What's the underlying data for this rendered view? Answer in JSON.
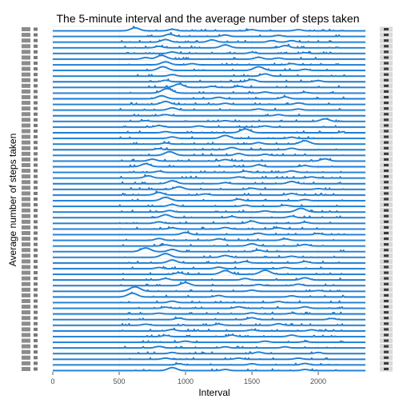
{
  "chart_data": {
    "type": "line",
    "title": "The 5-minute interval and the average number of steps taken",
    "xlabel": "Interval",
    "ylabel": "Average number of steps taken",
    "xlim": [
      0,
      2355
    ],
    "x_ticks": [
      0,
      500,
      1000,
      1500,
      2000
    ],
    "facet_count": 61,
    "facet_layout": "one panel per row, stacked vertically, with a strip label on the right of each panel",
    "strip_labels_legible": false,
    "y_tick_labels_legible": false,
    "grid": true,
    "legend": "none",
    "series_color": "#1f7fd4",
    "panels": [
      {
        "peaks": [
          [
            620,
            4
          ],
          [
            900,
            2
          ],
          [
            1500,
            1.5
          ],
          [
            1850,
            1.5
          ]
        ]
      },
      {
        "peaks": [
          [
            880,
            3
          ],
          [
            1300,
            2
          ],
          [
            1700,
            1.5
          ]
        ]
      },
      {
        "peaks": [
          [
            850,
            3.5
          ],
          [
            1200,
            3
          ],
          [
            1650,
            2
          ],
          [
            1800,
            2
          ]
        ]
      },
      {
        "peaks": [
          [
            800,
            2
          ],
          [
            1300,
            4
          ],
          [
            1750,
            3
          ]
        ]
      },
      {
        "peaks": [
          [
            900,
            2
          ],
          [
            1500,
            1.5
          ],
          [
            1900,
            1
          ]
        ]
      },
      {
        "peaks": [
          [
            700,
            2
          ],
          [
            820,
            5
          ],
          [
            1550,
            2.5
          ],
          [
            1700,
            1.5
          ]
        ]
      },
      {
        "peaks": [
          [
            850,
            4
          ],
          [
            1050,
            1.5
          ],
          [
            1800,
            1.5
          ]
        ]
      },
      {
        "peaks": [
          [
            830,
            5
          ],
          [
            1550,
            5
          ],
          [
            1900,
            1.5
          ]
        ]
      },
      {
        "peaks": [
          [
            900,
            2
          ],
          [
            1600,
            3
          ]
        ]
      },
      {
        "peaks": [
          [
            850,
            2
          ],
          [
            1500,
            3
          ],
          [
            2000,
            1.5
          ]
        ]
      },
      {
        "peaks": [
          [
            950,
            4.5
          ],
          [
            1200,
            1.5
          ],
          [
            1400,
            1.5
          ]
        ]
      },
      {
        "peaks": [
          [
            860,
            6
          ],
          [
            1600,
            1.5
          ],
          [
            1900,
            1
          ]
        ]
      },
      {
        "peaks": [
          [
            820,
            4
          ],
          [
            1250,
            2
          ],
          [
            1750,
            2.5
          ]
        ]
      },
      {
        "peaks": [
          [
            850,
            4
          ],
          [
            1300,
            1.5
          ],
          [
            1850,
            2
          ]
        ]
      },
      {
        "peaks": [
          [
            900,
            3
          ],
          [
            1550,
            1.5
          ],
          [
            1850,
            1.5
          ]
        ]
      },
      {
        "peaks": [
          [
            850,
            1.5
          ],
          [
            1700,
            1.5
          ]
        ]
      },
      {
        "peaks": [
          [
            700,
            1
          ],
          [
            1300,
            1
          ],
          [
            2050,
            3.5
          ]
        ]
      },
      {
        "peaks": [
          [
            800,
            2
          ],
          [
            1100,
            1.5
          ],
          [
            1600,
            1.5
          ]
        ]
      },
      {
        "peaks": [
          [
            850,
            1.5
          ],
          [
            1450,
            5
          ],
          [
            2200,
            1.5
          ]
        ]
      },
      {
        "peaks": [
          [
            900,
            2
          ],
          [
            1300,
            4
          ],
          [
            1800,
            1.5
          ]
        ]
      },
      {
        "peaks": [
          [
            850,
            1.5
          ],
          [
            1550,
            2
          ],
          [
            1900,
            4.5
          ]
        ]
      },
      {
        "peaks": [
          [
            800,
            1.5
          ],
          [
            1350,
            3
          ],
          [
            1800,
            2
          ]
        ]
      },
      {
        "peaks": [
          [
            880,
            5
          ],
          [
            1400,
            2.5
          ],
          [
            1600,
            1.5
          ]
        ]
      },
      {
        "peaks": [
          [
            750,
            2.5
          ],
          [
            1300,
            2
          ],
          [
            2050,
            3
          ]
        ]
      },
      {
        "peaks": [
          [
            700,
            4
          ],
          [
            1550,
            2.5
          ],
          [
            1900,
            1.5
          ]
        ]
      },
      {
        "peaks": [
          [
            800,
            1.5
          ],
          [
            1450,
            1.5
          ],
          [
            1800,
            2
          ]
        ]
      },
      {
        "peaks": [
          [
            720,
            3
          ],
          [
            1400,
            1.5
          ],
          [
            1950,
            1.5
          ]
        ]
      },
      {
        "peaks": [
          [
            900,
            4
          ],
          [
            1300,
            1.5
          ],
          [
            1800,
            3
          ]
        ]
      },
      {
        "peaks": [
          [
            950,
            3.5
          ],
          [
            1500,
            1.5
          ],
          [
            2000,
            1
          ]
        ]
      },
      {
        "peaks": [
          [
            800,
            3.5
          ],
          [
            1150,
            1.5
          ],
          [
            1800,
            2
          ]
        ]
      },
      {
        "peaks": [
          [
            850,
            4.5
          ],
          [
            1400,
            2
          ],
          [
            1900,
            1.5
          ]
        ]
      },
      {
        "peaks": [
          [
            900,
            2.5
          ],
          [
            1450,
            1.5
          ],
          [
            1750,
            1.5
          ]
        ]
      },
      {
        "peaks": [
          [
            880,
            2
          ],
          [
            1600,
            1.5
          ],
          [
            1870,
            5
          ]
        ]
      },
      {
        "peaks": [
          [
            850,
            4
          ],
          [
            1350,
            1.5
          ],
          [
            1800,
            2
          ]
        ]
      },
      {
        "peaks": [
          [
            800,
            2
          ],
          [
            1500,
            3
          ],
          [
            1900,
            1.5
          ]
        ]
      },
      {
        "peaks": [
          [
            900,
            1.5
          ],
          [
            1300,
            2
          ],
          [
            1700,
            1.5
          ]
        ]
      },
      {
        "peaks": [
          [
            1000,
            3
          ],
          [
            1550,
            2
          ],
          [
            2000,
            1.5
          ]
        ]
      },
      {
        "peaks": [
          [
            800,
            2.5
          ],
          [
            1250,
            2
          ],
          [
            1750,
            2
          ]
        ]
      },
      {
        "peaks": [
          [
            850,
            1.5
          ],
          [
            1500,
            3
          ],
          [
            1900,
            2
          ]
        ]
      },
      {
        "peaks": [
          [
            700,
            5
          ],
          [
            900,
            3
          ],
          [
            1550,
            2
          ]
        ]
      },
      {
        "peaks": [
          [
            850,
            5
          ],
          [
            1300,
            2.5
          ],
          [
            1800,
            1.5
          ]
        ]
      },
      {
        "peaks": [
          [
            900,
            4
          ],
          [
            1450,
            2
          ],
          [
            1900,
            2
          ]
        ]
      },
      {
        "peaks": [
          [
            800,
            1.5
          ],
          [
            1250,
            2
          ],
          [
            1750,
            1.5
          ]
        ]
      },
      {
        "peaks": [
          [
            950,
            2
          ],
          [
            1300,
            5
          ],
          [
            1600,
            5.5
          ]
        ]
      },
      {
        "peaks": [
          [
            850,
            2
          ],
          [
            1450,
            2
          ],
          [
            1900,
            3
          ]
        ]
      },
      {
        "peaks": [
          [
            1000,
            4
          ],
          [
            1550,
            1.5
          ],
          [
            1850,
            2
          ]
        ]
      },
      {
        "peaks": [
          [
            620,
            6
          ],
          [
            1500,
            1.5
          ],
          [
            2000,
            1
          ]
        ]
      },
      {
        "peaks": [
          [
            600,
            5
          ],
          [
            1250,
            2
          ],
          [
            1800,
            1.5
          ]
        ]
      },
      {
        "peaks": [
          [
            900,
            2
          ],
          [
            1700,
            1.5
          ]
        ]
      },
      {
        "peaks": [
          [
            850,
            1.5
          ],
          [
            1400,
            2
          ],
          [
            1900,
            2
          ]
        ]
      },
      {
        "peaks": [
          [
            800,
            1
          ],
          [
            1500,
            1.5
          ],
          [
            1800,
            1
          ]
        ]
      },
      {
        "peaks": [
          [
            950,
            2
          ],
          [
            1500,
            2.5
          ],
          [
            2100,
            1.5
          ]
        ]
      },
      {
        "peaks": [
          [
            700,
            1.5
          ],
          [
            1250,
            1.5
          ],
          [
            1700,
            2
          ]
        ]
      },
      {
        "peaks": [
          [
            900,
            2
          ],
          [
            1500,
            1.5
          ],
          [
            1950,
            1.5
          ]
        ]
      },
      {
        "peaks": [
          [
            850,
            1.5
          ],
          [
            1350,
            2
          ],
          [
            1800,
            2
          ]
        ]
      },
      {
        "peaks": [
          [
            1000,
            1.5
          ],
          [
            1600,
            1.5
          ],
          [
            1900,
            1
          ]
        ]
      },
      {
        "peaks": [
          [
            800,
            2
          ],
          [
            1300,
            1.5
          ],
          [
            1750,
            1.5
          ]
        ]
      },
      {
        "peaks": [
          [
            900,
            1.5
          ],
          [
            1550,
            2
          ],
          [
            2000,
            1.5
          ]
        ]
      },
      {
        "peaks": [
          [
            850,
            1.5
          ],
          [
            1400,
            1.5
          ],
          [
            1850,
            1.5
          ]
        ]
      },
      {
        "peaks": [
          [
            950,
            1.5
          ],
          [
            1500,
            1.5
          ],
          [
            1900,
            2
          ]
        ]
      },
      {
        "peaks": [
          [
            900,
            4
          ],
          [
            1300,
            1.5
          ],
          [
            1900,
            1.5
          ]
        ]
      }
    ]
  }
}
